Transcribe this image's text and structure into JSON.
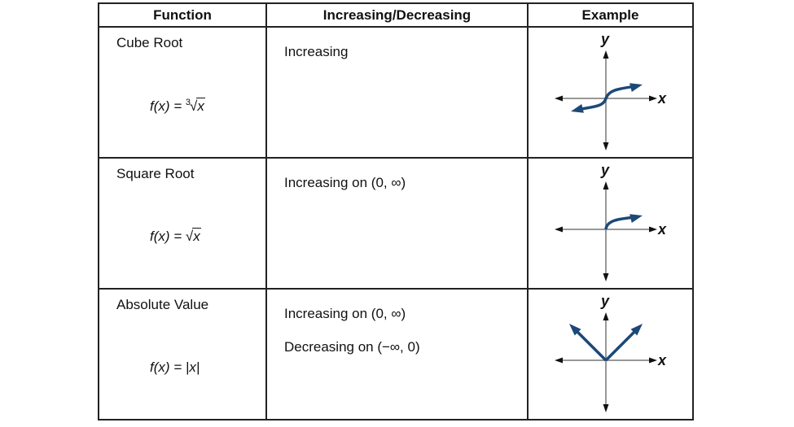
{
  "headers": {
    "function": "Function",
    "behavior": "Increasing/Decreasing",
    "example": "Example"
  },
  "rows": [
    {
      "name": "Cube Root",
      "formula_lhs": "f(x) = ",
      "formula_index": "3",
      "formula_radicand": "x",
      "behavior": [
        "Increasing"
      ],
      "graph": "cube-root"
    },
    {
      "name": "Square Root",
      "formula_lhs": "f(x) = ",
      "formula_radicand": "x",
      "behavior": [
        "Increasing on (0, ∞)"
      ],
      "graph": "square-root"
    },
    {
      "name": "Absolute Value",
      "formula_lhs": "f(x) = ",
      "formula_abs": "|x|",
      "behavior": [
        "Increasing on (0, ∞)",
        "Decreasing on (−∞, 0)"
      ],
      "graph": "absolute-value"
    }
  ],
  "axis_labels": {
    "x": "x",
    "y": "y"
  },
  "colors": {
    "curve": "#1d4877",
    "axis": "#777777",
    "border": "#222222"
  }
}
